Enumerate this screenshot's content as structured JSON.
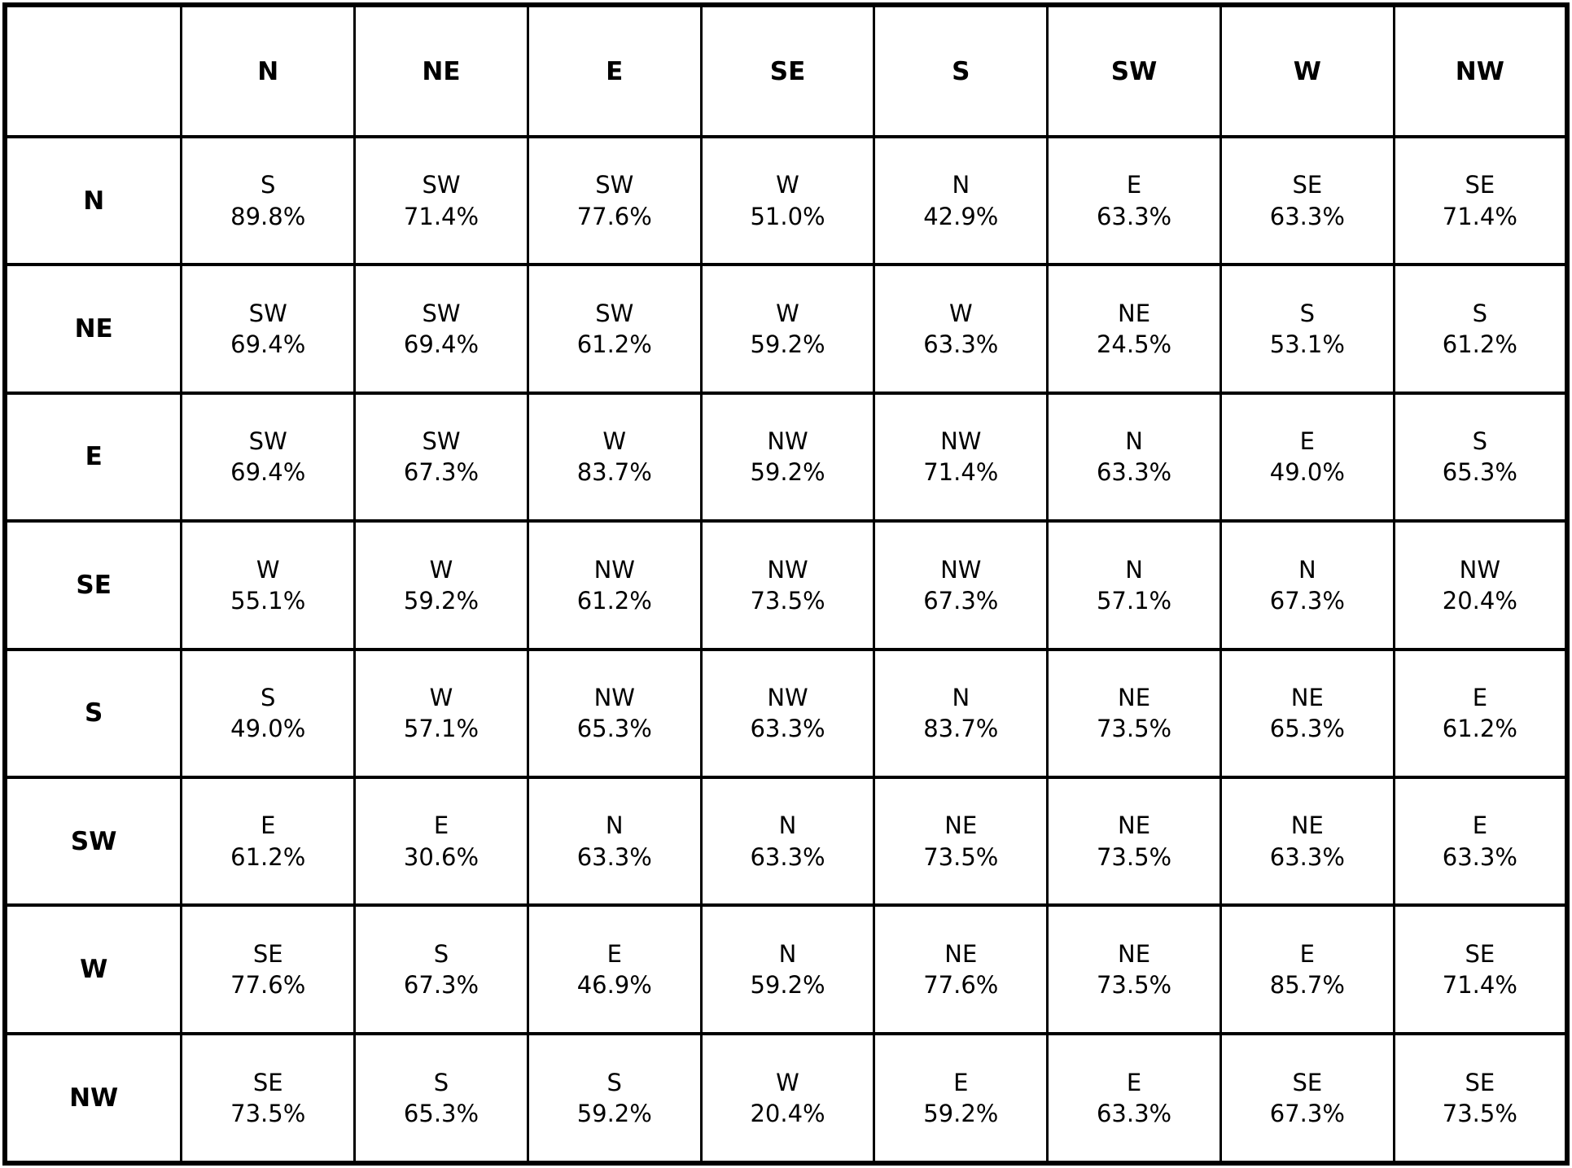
{
  "chart_data": {
    "type": "table",
    "corner_label": "",
    "columns": [
      "N",
      "NE",
      "E",
      "SE",
      "S",
      "SW",
      "W",
      "NW"
    ],
    "rows": [
      {
        "label": "N",
        "cells": [
          {
            "direction": "S",
            "percentage": "89.8%"
          },
          {
            "direction": "SW",
            "percentage": "71.4%"
          },
          {
            "direction": "SW",
            "percentage": "77.6%"
          },
          {
            "direction": "W",
            "percentage": "51.0%"
          },
          {
            "direction": "N",
            "percentage": "42.9%"
          },
          {
            "direction": "E",
            "percentage": "63.3%"
          },
          {
            "direction": "SE",
            "percentage": "63.3%"
          },
          {
            "direction": "SE",
            "percentage": "71.4%"
          }
        ]
      },
      {
        "label": "NE",
        "cells": [
          {
            "direction": "SW",
            "percentage": "69.4%"
          },
          {
            "direction": "SW",
            "percentage": "69.4%"
          },
          {
            "direction": "SW",
            "percentage": "61.2%"
          },
          {
            "direction": "W",
            "percentage": "59.2%"
          },
          {
            "direction": "W",
            "percentage": "63.3%"
          },
          {
            "direction": "NE",
            "percentage": "24.5%"
          },
          {
            "direction": "S",
            "percentage": "53.1%"
          },
          {
            "direction": "S",
            "percentage": "61.2%"
          }
        ]
      },
      {
        "label": "E",
        "cells": [
          {
            "direction": "SW",
            "percentage": "69.4%"
          },
          {
            "direction": "SW",
            "percentage": "67.3%"
          },
          {
            "direction": "W",
            "percentage": "83.7%"
          },
          {
            "direction": "NW",
            "percentage": "59.2%"
          },
          {
            "direction": "NW",
            "percentage": "71.4%"
          },
          {
            "direction": "N",
            "percentage": "63.3%"
          },
          {
            "direction": "E",
            "percentage": "49.0%"
          },
          {
            "direction": "S",
            "percentage": "65.3%"
          }
        ]
      },
      {
        "label": "SE",
        "cells": [
          {
            "direction": "W",
            "percentage": "55.1%"
          },
          {
            "direction": "W",
            "percentage": "59.2%"
          },
          {
            "direction": "NW",
            "percentage": "61.2%"
          },
          {
            "direction": "NW",
            "percentage": "73.5%"
          },
          {
            "direction": "NW",
            "percentage": "67.3%"
          },
          {
            "direction": "N",
            "percentage": "57.1%"
          },
          {
            "direction": "N",
            "percentage": "67.3%"
          },
          {
            "direction": "NW",
            "percentage": "20.4%"
          }
        ]
      },
      {
        "label": "S",
        "cells": [
          {
            "direction": "S",
            "percentage": "49.0%"
          },
          {
            "direction": "W",
            "percentage": "57.1%"
          },
          {
            "direction": "NW",
            "percentage": "65.3%"
          },
          {
            "direction": "NW",
            "percentage": "63.3%"
          },
          {
            "direction": "N",
            "percentage": "83.7%"
          },
          {
            "direction": "NE",
            "percentage": "73.5%"
          },
          {
            "direction": "NE",
            "percentage": "65.3%"
          },
          {
            "direction": "E",
            "percentage": "61.2%"
          }
        ]
      },
      {
        "label": "SW",
        "cells": [
          {
            "direction": "E",
            "percentage": "61.2%"
          },
          {
            "direction": "E",
            "percentage": "30.6%"
          },
          {
            "direction": "N",
            "percentage": "63.3%"
          },
          {
            "direction": "N",
            "percentage": "63.3%"
          },
          {
            "direction": "NE",
            "percentage": "73.5%"
          },
          {
            "direction": "NE",
            "percentage": "73.5%"
          },
          {
            "direction": "NE",
            "percentage": "63.3%"
          },
          {
            "direction": "E",
            "percentage": "63.3%"
          }
        ]
      },
      {
        "label": "W",
        "cells": [
          {
            "direction": "SE",
            "percentage": "77.6%"
          },
          {
            "direction": "S",
            "percentage": "67.3%"
          },
          {
            "direction": "E",
            "percentage": "46.9%"
          },
          {
            "direction": "N",
            "percentage": "59.2%"
          },
          {
            "direction": "NE",
            "percentage": "77.6%"
          },
          {
            "direction": "NE",
            "percentage": "73.5%"
          },
          {
            "direction": "E",
            "percentage": "85.7%"
          },
          {
            "direction": "SE",
            "percentage": "71.4%"
          }
        ]
      },
      {
        "label": "NW",
        "cells": [
          {
            "direction": "SE",
            "percentage": "73.5%"
          },
          {
            "direction": "S",
            "percentage": "65.3%"
          },
          {
            "direction": "S",
            "percentage": "59.2%"
          },
          {
            "direction": "W",
            "percentage": "20.4%"
          },
          {
            "direction": "E",
            "percentage": "59.2%"
          },
          {
            "direction": "E",
            "percentage": "63.3%"
          },
          {
            "direction": "SE",
            "percentage": "67.3%"
          },
          {
            "direction": "SE",
            "percentage": "73.5%"
          }
        ]
      }
    ],
    "layout": {
      "grid": "on",
      "border_color": "#000000",
      "background_color": "#ffffff",
      "text_color": "#000000"
    }
  }
}
